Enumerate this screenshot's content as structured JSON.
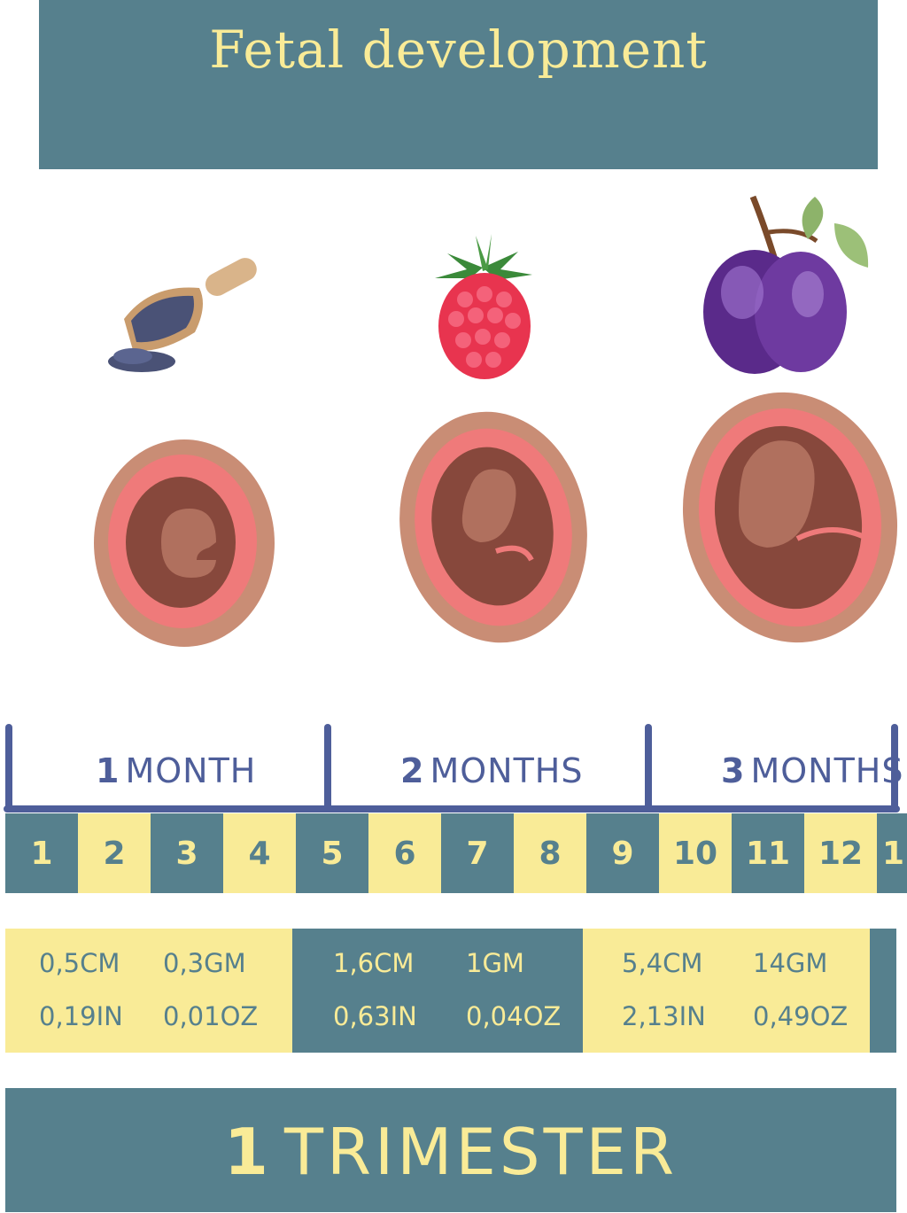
{
  "header": {
    "title": "Fetal development"
  },
  "months": [
    {
      "num": "1",
      "label": "MONTH"
    },
    {
      "num": "2",
      "label": "MONTHS"
    },
    {
      "num": "3",
      "label": "MONTHS"
    }
  ],
  "weeks": [
    "1",
    "2",
    "3",
    "4",
    "5",
    "6",
    "7",
    "8",
    "9",
    "10",
    "11",
    "12",
    "1"
  ],
  "sizes": [
    {
      "length_cm": "0,5CM",
      "weight_g": "0,3GM",
      "length_in": "0,19IN",
      "weight_oz": "0,01OZ"
    },
    {
      "length_cm": "1,6CM",
      "weight_g": "1GM",
      "length_in": "0,63IN",
      "weight_oz": "0,04OZ"
    },
    {
      "length_cm": "5,4CM",
      "weight_g": "14GM",
      "length_in": "2,13IN",
      "weight_oz": "0,49OZ"
    }
  ],
  "footer": {
    "num": "1",
    "label": "TRIMESTER"
  },
  "illustrations": [
    "poppy-seed-icon",
    "raspberry-icon",
    "plum-icon"
  ],
  "colors": {
    "teal": "#56808d",
    "yellow": "#f9eb97",
    "navy": "#4e5e9a"
  }
}
